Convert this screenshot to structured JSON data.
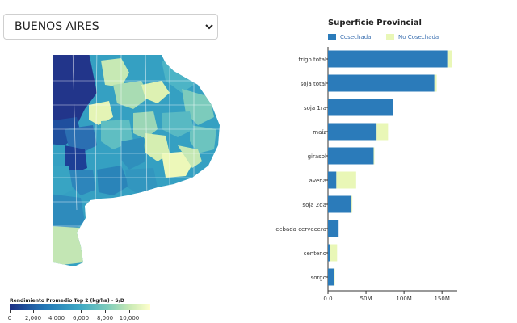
{
  "province_select": {
    "value": "BUENOS AIRES"
  },
  "map_legend": {
    "title": "Rendimiento Promedio Top 2 (kg/ha) - S/D",
    "ticks": [
      "0",
      "2,000",
      "4,000",
      "6,000",
      "8,000",
      "10,000"
    ],
    "colors": [
      "#1b2e83",
      "#2478b6",
      "#3fa9c4",
      "#7fcdbb",
      "#c7e9b4",
      "#ffffcc"
    ]
  },
  "chart_data": {
    "type": "bar",
    "title": "Superficie Provincial",
    "categories": [
      "trigo total",
      "soja total",
      "soja 1ra",
      "maíz",
      "girasol",
      "avena",
      "soja 2da",
      "cebada cervecera",
      "centeno",
      "sorgo"
    ],
    "series": [
      {
        "name": "Cosechada",
        "color": "#2b7bba",
        "values": [
          157,
          140,
          86,
          64,
          60,
          11,
          31,
          14,
          3,
          8
        ]
      },
      {
        "name": "No Cosechada",
        "color": "#e9f7b7",
        "values": [
          6,
          3,
          0,
          15,
          1,
          26,
          1,
          0,
          9,
          1
        ]
      }
    ],
    "xlim": [
      0,
      170
    ],
    "x_ticks": [
      0,
      50,
      100,
      150
    ],
    "x_tick_labels": [
      "0.0",
      "50M",
      "100M",
      "150M"
    ]
  }
}
